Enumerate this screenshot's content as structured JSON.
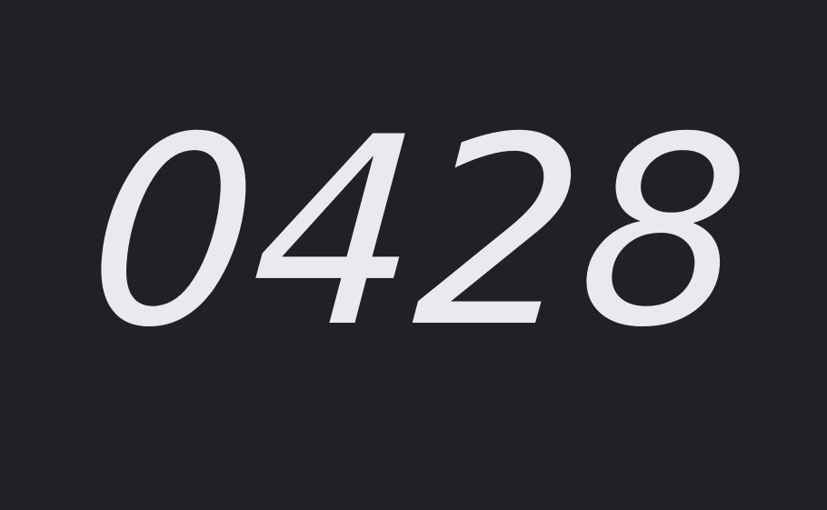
{
  "display": {
    "value": "0428"
  },
  "colors": {
    "background": "#202124",
    "text": "#e8eaed"
  }
}
